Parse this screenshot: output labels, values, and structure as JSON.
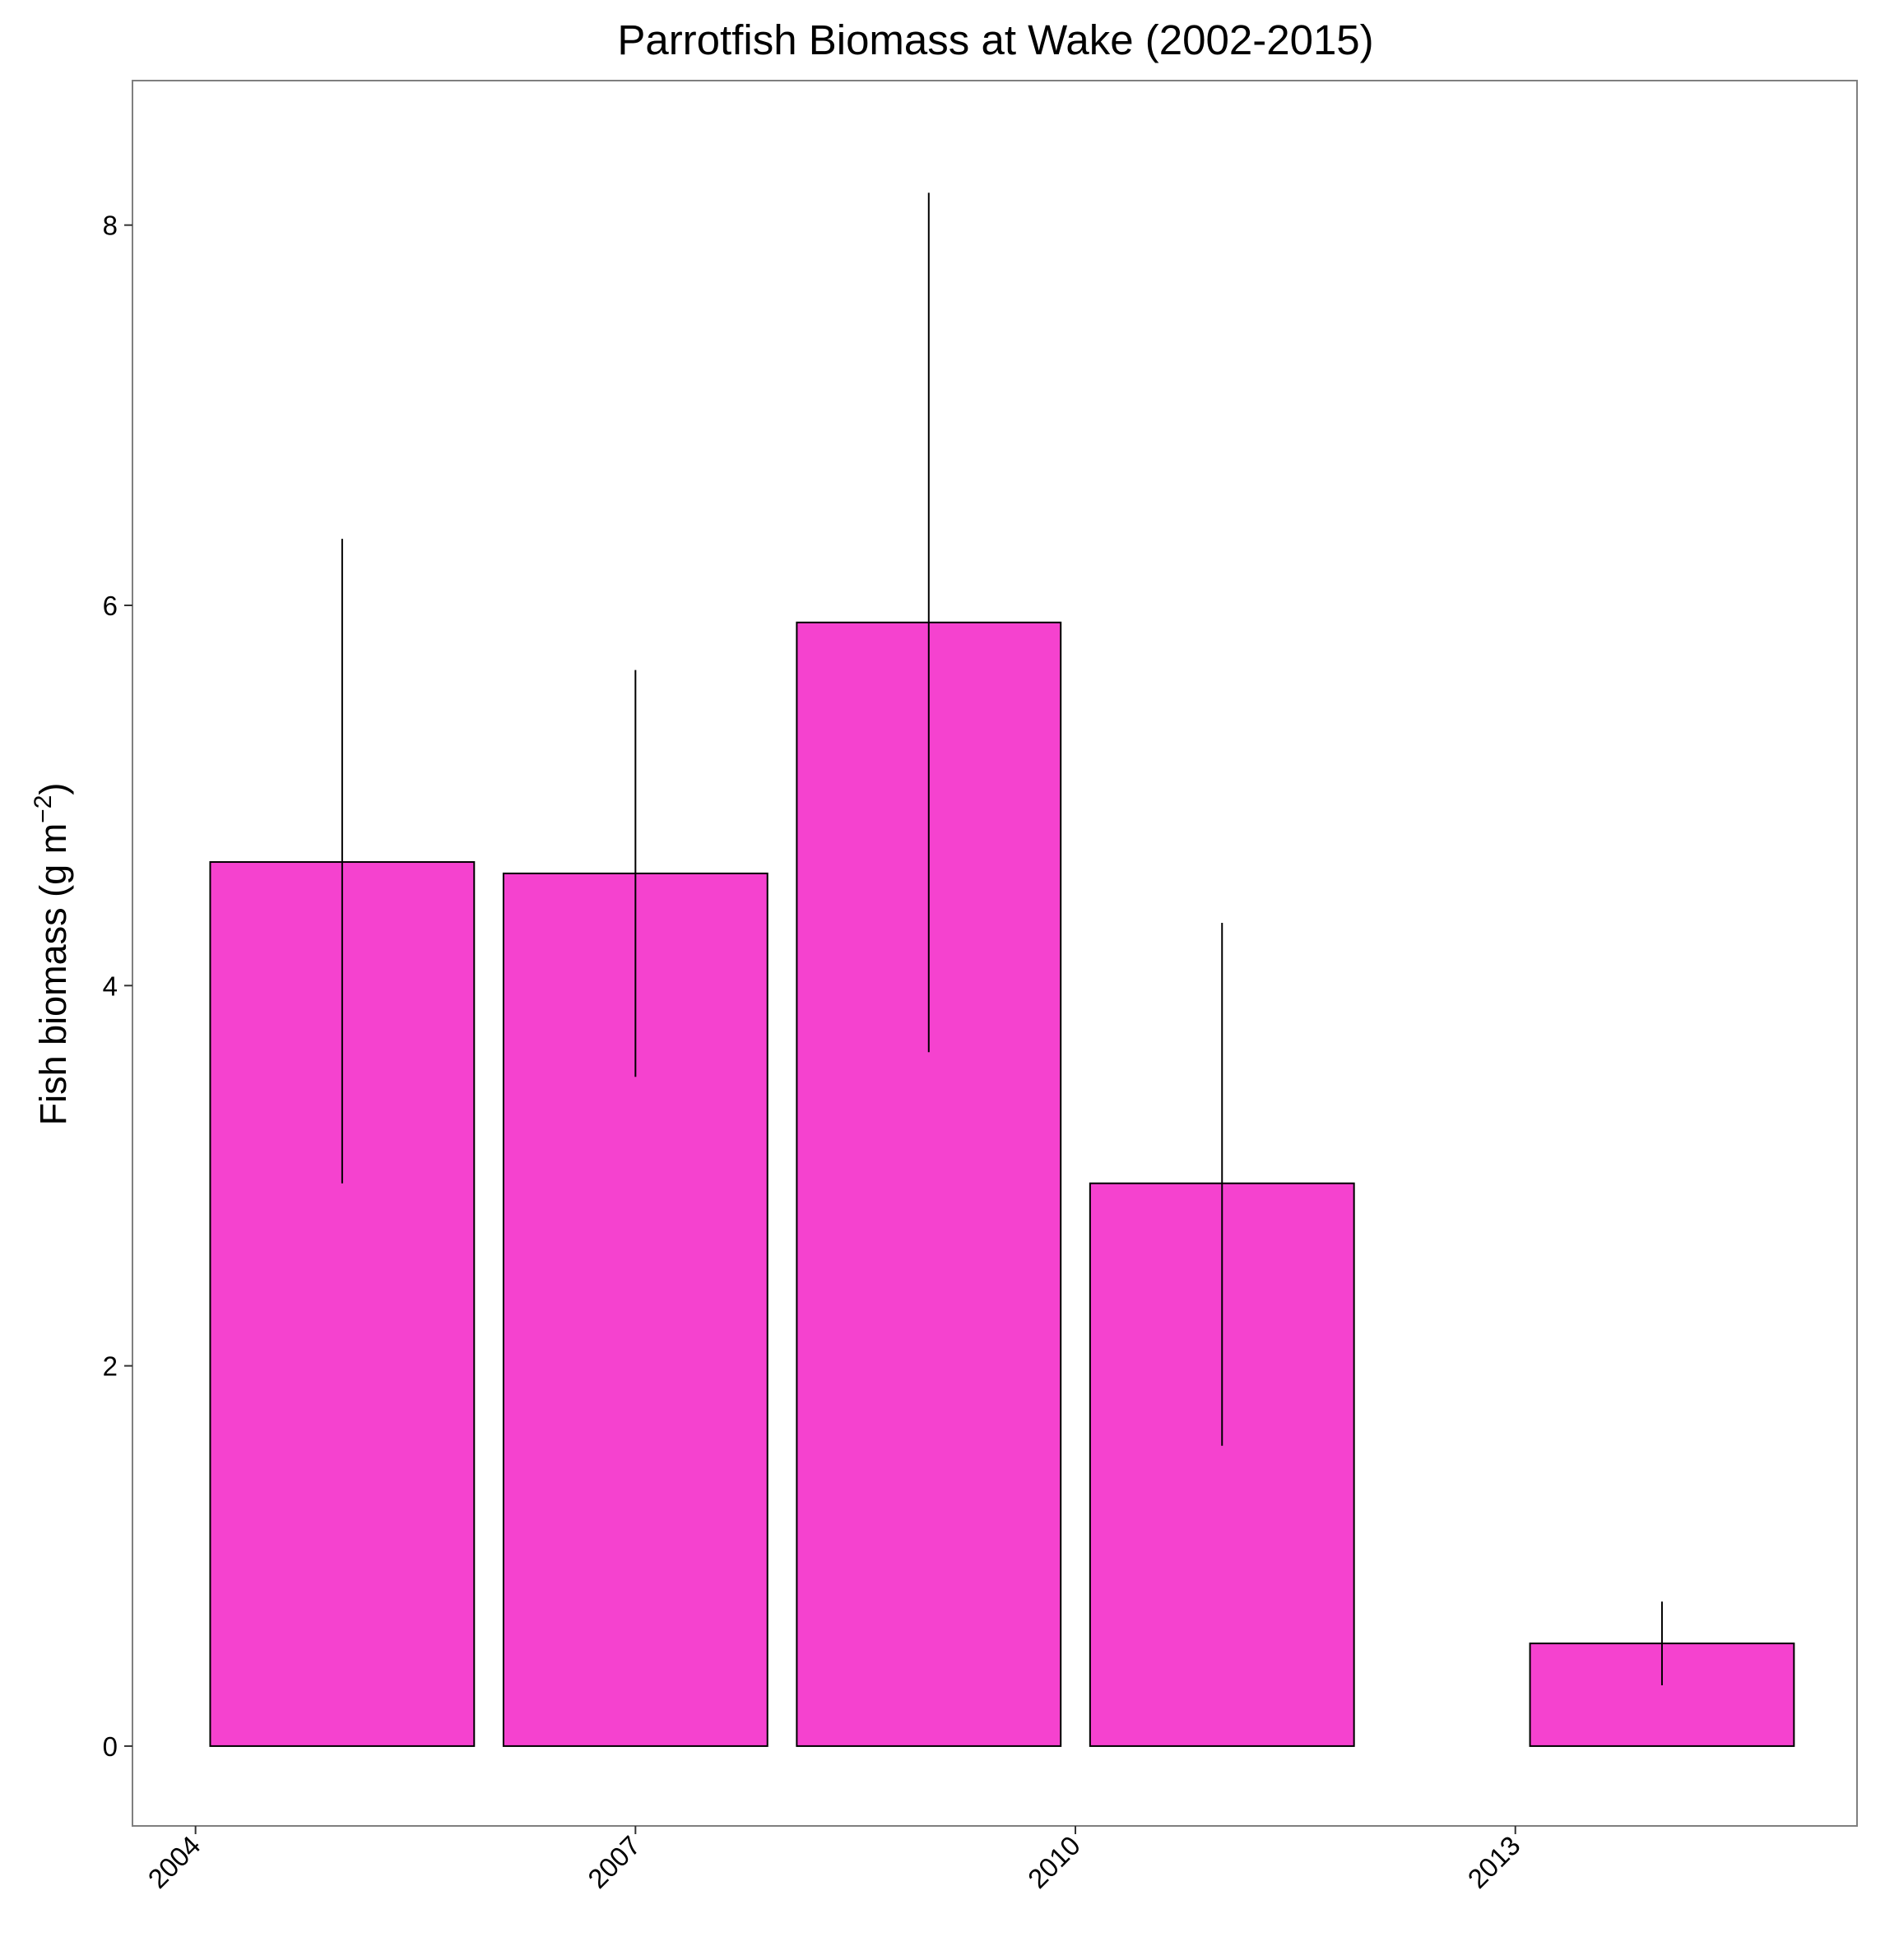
{
  "chart_data": {
    "type": "bar",
    "title": "Parrotfish Biomass at Wake (2002-2015)",
    "xlabel": "",
    "ylabel_main": "Fish biomass (g m",
    "ylabel_sup": "−2",
    "ylabel_close": ")",
    "fill_color": "#F542CF",
    "edge_color": "#000000",
    "x_ticks": [
      {
        "value": 2004,
        "label": "2004"
      },
      {
        "value": 2007,
        "label": "2007"
      },
      {
        "value": 2010,
        "label": "2010"
      },
      {
        "value": 2013,
        "label": "2013"
      }
    ],
    "y_ticks": [
      {
        "value": 0,
        "label": "0"
      },
      {
        "value": 2,
        "label": "2"
      },
      {
        "value": 4,
        "label": "4"
      },
      {
        "value": 6,
        "label": "6"
      },
      {
        "value": 8,
        "label": "8"
      }
    ],
    "xlim": [
      2003.57,
      2015.33
    ],
    "ylim": [
      -0.42,
      8.76
    ],
    "bars": [
      {
        "x": 2005,
        "value": 4.65,
        "err_low": 2.96,
        "err_high": 6.35
      },
      {
        "x": 2007,
        "value": 4.59,
        "err_low": 3.52,
        "err_high": 5.66
      },
      {
        "x": 2009,
        "value": 5.91,
        "err_low": 3.65,
        "err_high": 8.17
      },
      {
        "x": 2011,
        "value": 2.96,
        "err_low": 1.58,
        "err_high": 4.33
      },
      {
        "x": 2014,
        "value": 0.54,
        "err_low": 0.32,
        "err_high": 0.76
      }
    ],
    "bar_width_years": 1.8,
    "grid": false,
    "legend": "none"
  }
}
